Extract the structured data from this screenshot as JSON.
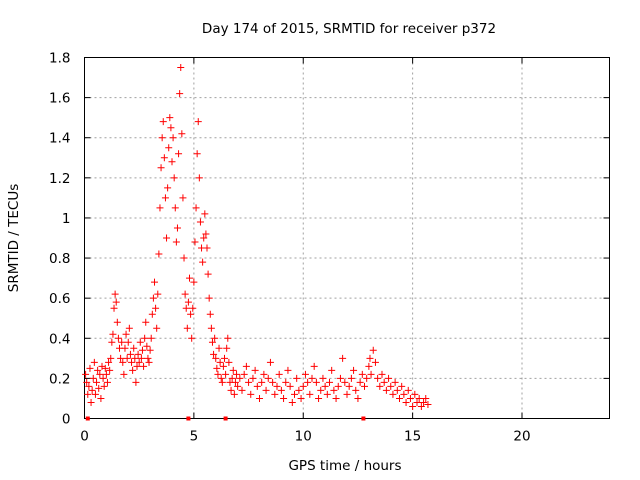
{
  "chart_data": {
    "type": "scatter",
    "title": "Day 174 of 2015, SRMTID for receiver p372",
    "xlabel": "GPS time / hours",
    "ylabel": "SRMTID / TECUs",
    "xlim": [
      0,
      24
    ],
    "ylim": [
      0,
      1.8
    ],
    "x_ticks": [
      0,
      5,
      10,
      15,
      20
    ],
    "x_tick_labels": [
      "0",
      "5",
      "10",
      "15",
      "20"
    ],
    "y_ticks": [
      0,
      0.2,
      0.4,
      0.6,
      0.8,
      1,
      1.2,
      1.4,
      1.6,
      1.8
    ],
    "y_tick_labels": [
      "0",
      "0.2",
      "0.4",
      "0.6",
      "0.8",
      "1",
      "1.2",
      "1.4",
      "1.6",
      "1.8"
    ],
    "grid": true,
    "marker": "plus",
    "marker_color": "#ff0000",
    "gap_markers_x": [
      0.15,
      4.75,
      6.45,
      12.75
    ],
    "series": [
      {
        "name": "SRMTID",
        "points": [
          [
            0.05,
            0.22
          ],
          [
            0.1,
            0.18
          ],
          [
            0.15,
            0.12
          ],
          [
            0.2,
            0.16
          ],
          [
            0.25,
            0.25
          ],
          [
            0.3,
            0.08
          ],
          [
            0.35,
            0.14
          ],
          [
            0.4,
            0.2
          ],
          [
            0.45,
            0.28
          ],
          [
            0.5,
            0.12
          ],
          [
            0.55,
            0.18
          ],
          [
            0.6,
            0.24
          ],
          [
            0.65,
            0.15
          ],
          [
            0.7,
            0.22
          ],
          [
            0.75,
            0.1
          ],
          [
            0.8,
            0.26
          ],
          [
            0.85,
            0.2
          ],
          [
            0.9,
            0.16
          ],
          [
            0.95,
            0.25
          ],
          [
            1.0,
            0.22
          ],
          [
            1.05,
            0.18
          ],
          [
            1.1,
            0.28
          ],
          [
            1.15,
            0.24
          ],
          [
            1.2,
            0.3
          ],
          [
            1.25,
            0.38
          ],
          [
            1.3,
            0.42
          ],
          [
            1.35,
            0.55
          ],
          [
            1.4,
            0.62
          ],
          [
            1.45,
            0.58
          ],
          [
            1.5,
            0.48
          ],
          [
            1.55,
            0.4
          ],
          [
            1.6,
            0.35
          ],
          [
            1.65,
            0.3
          ],
          [
            1.7,
            0.38
          ],
          [
            1.75,
            0.28
          ],
          [
            1.8,
            0.22
          ],
          [
            1.85,
            0.35
          ],
          [
            1.9,
            0.42
          ],
          [
            1.95,
            0.3
          ],
          [
            2.0,
            0.38
          ],
          [
            2.05,
            0.45
          ],
          [
            2.1,
            0.32
          ],
          [
            2.15,
            0.28
          ],
          [
            2.2,
            0.24
          ],
          [
            2.25,
            0.35
          ],
          [
            2.3,
            0.3
          ],
          [
            2.35,
            0.18
          ],
          [
            2.4,
            0.26
          ],
          [
            2.45,
            0.32
          ],
          [
            2.5,
            0.28
          ],
          [
            2.55,
            0.38
          ],
          [
            2.6,
            0.3
          ],
          [
            2.65,
            0.34
          ],
          [
            2.7,
            0.26
          ],
          [
            2.75,
            0.4
          ],
          [
            2.8,
            0.48
          ],
          [
            2.85,
            0.36
          ],
          [
            2.9,
            0.3
          ],
          [
            2.95,
            0.28
          ],
          [
            3.0,
            0.34
          ],
          [
            3.05,
            0.4
          ],
          [
            3.1,
            0.52
          ],
          [
            3.15,
            0.6
          ],
          [
            3.2,
            0.68
          ],
          [
            3.25,
            0.55
          ],
          [
            3.3,
            0.45
          ],
          [
            3.35,
            0.62
          ],
          [
            3.4,
            0.82
          ],
          [
            3.45,
            1.05
          ],
          [
            3.5,
            1.25
          ],
          [
            3.55,
            1.4
          ],
          [
            3.6,
            1.48
          ],
          [
            3.65,
            1.3
          ],
          [
            3.7,
            1.1
          ],
          [
            3.75,
            0.9
          ],
          [
            3.8,
            1.15
          ],
          [
            3.85,
            1.35
          ],
          [
            3.9,
            1.5
          ],
          [
            3.95,
            1.45
          ],
          [
            4.0,
            1.28
          ],
          [
            4.05,
            1.4
          ],
          [
            4.1,
            1.2
          ],
          [
            4.15,
            1.05
          ],
          [
            4.2,
            0.88
          ],
          [
            4.25,
            0.95
          ],
          [
            4.3,
            1.32
          ],
          [
            4.35,
            1.62
          ],
          [
            4.4,
            1.75
          ],
          [
            4.45,
            1.42
          ],
          [
            4.5,
            1.1
          ],
          [
            4.55,
            0.8
          ],
          [
            4.6,
            0.62
          ],
          [
            4.65,
            0.55
          ],
          [
            4.7,
            0.45
          ],
          [
            4.75,
            0.58
          ],
          [
            4.8,
            0.7
          ],
          [
            4.85,
            0.52
          ],
          [
            4.9,
            0.4
          ],
          [
            4.95,
            0.55
          ],
          [
            5.0,
            0.68
          ],
          [
            5.05,
            0.88
          ],
          [
            5.1,
            1.05
          ],
          [
            5.15,
            1.32
          ],
          [
            5.2,
            1.48
          ],
          [
            5.25,
            1.2
          ],
          [
            5.3,
            0.98
          ],
          [
            5.35,
            0.85
          ],
          [
            5.4,
            0.78
          ],
          [
            5.45,
            0.9
          ],
          [
            5.5,
            1.02
          ],
          [
            5.55,
            0.92
          ],
          [
            5.6,
            0.85
          ],
          [
            5.65,
            0.72
          ],
          [
            5.7,
            0.6
          ],
          [
            5.75,
            0.52
          ],
          [
            5.8,
            0.45
          ],
          [
            5.85,
            0.38
          ],
          [
            5.9,
            0.32
          ],
          [
            5.95,
            0.4
          ],
          [
            6.0,
            0.3
          ],
          [
            6.05,
            0.25
          ],
          [
            6.1,
            0.22
          ],
          [
            6.15,
            0.35
          ],
          [
            6.2,
            0.28
          ],
          [
            6.25,
            0.2
          ],
          [
            6.3,
            0.18
          ],
          [
            6.35,
            0.26
          ],
          [
            6.4,
            0.3
          ],
          [
            6.45,
            0.22
          ],
          [
            6.5,
            0.35
          ],
          [
            6.55,
            0.4
          ],
          [
            6.6,
            0.28
          ],
          [
            6.65,
            0.18
          ],
          [
            6.7,
            0.14
          ],
          [
            6.75,
            0.2
          ],
          [
            6.8,
            0.24
          ],
          [
            6.85,
            0.12
          ],
          [
            6.9,
            0.18
          ],
          [
            6.95,
            0.22
          ],
          [
            7.0,
            0.16
          ],
          [
            7.1,
            0.2
          ],
          [
            7.2,
            0.14
          ],
          [
            7.3,
            0.22
          ],
          [
            7.4,
            0.26
          ],
          [
            7.5,
            0.18
          ],
          [
            7.6,
            0.12
          ],
          [
            7.7,
            0.2
          ],
          [
            7.8,
            0.24
          ],
          [
            7.9,
            0.16
          ],
          [
            8.0,
            0.1
          ],
          [
            8.1,
            0.18
          ],
          [
            8.2,
            0.22
          ],
          [
            8.3,
            0.14
          ],
          [
            8.4,
            0.2
          ],
          [
            8.5,
            0.28
          ],
          [
            8.6,
            0.18
          ],
          [
            8.7,
            0.12
          ],
          [
            8.8,
            0.16
          ],
          [
            8.9,
            0.22
          ],
          [
            9.0,
            0.14
          ],
          [
            9.1,
            0.1
          ],
          [
            9.2,
            0.18
          ],
          [
            9.3,
            0.24
          ],
          [
            9.4,
            0.16
          ],
          [
            9.5,
            0.08
          ],
          [
            9.6,
            0.12
          ],
          [
            9.7,
            0.2
          ],
          [
            9.8,
            0.14
          ],
          [
            9.9,
            0.1
          ],
          [
            10.0,
            0.16
          ],
          [
            10.1,
            0.22
          ],
          [
            10.2,
            0.18
          ],
          [
            10.3,
            0.12
          ],
          [
            10.4,
            0.2
          ],
          [
            10.5,
            0.26
          ],
          [
            10.6,
            0.18
          ],
          [
            10.7,
            0.1
          ],
          [
            10.8,
            0.14
          ],
          [
            10.9,
            0.2
          ],
          [
            11.0,
            0.16
          ],
          [
            11.1,
            0.12
          ],
          [
            11.2,
            0.18
          ],
          [
            11.3,
            0.24
          ],
          [
            11.4,
            0.14
          ],
          [
            11.5,
            0.1
          ],
          [
            11.6,
            0.16
          ],
          [
            11.7,
            0.2
          ],
          [
            11.8,
            0.3
          ],
          [
            11.9,
            0.18
          ],
          [
            12.0,
            0.12
          ],
          [
            12.1,
            0.16
          ],
          [
            12.2,
            0.2
          ],
          [
            12.3,
            0.24
          ],
          [
            12.4,
            0.14
          ],
          [
            12.5,
            0.1
          ],
          [
            12.6,
            0.18
          ],
          [
            12.7,
            0.22
          ],
          [
            12.8,
            0.16
          ],
          [
            12.9,
            0.2
          ],
          [
            13.0,
            0.26
          ],
          [
            13.05,
            0.3
          ],
          [
            13.1,
            0.22
          ],
          [
            13.2,
            0.34
          ],
          [
            13.3,
            0.28
          ],
          [
            13.4,
            0.2
          ],
          [
            13.5,
            0.16
          ],
          [
            13.6,
            0.22
          ],
          [
            13.7,
            0.18
          ],
          [
            13.8,
            0.14
          ],
          [
            13.9,
            0.2
          ],
          [
            14.0,
            0.16
          ],
          [
            14.1,
            0.12
          ],
          [
            14.2,
            0.18
          ],
          [
            14.3,
            0.14
          ],
          [
            14.4,
            0.1
          ],
          [
            14.5,
            0.16
          ],
          [
            14.6,
            0.12
          ],
          [
            14.7,
            0.08
          ],
          [
            14.8,
            0.14
          ],
          [
            14.9,
            0.1
          ],
          [
            15.0,
            0.06
          ],
          [
            15.1,
            0.12
          ],
          [
            15.2,
            0.08
          ],
          [
            15.3,
            0.1
          ],
          [
            15.4,
            0.06
          ],
          [
            15.5,
            0.08
          ],
          [
            15.6,
            0.1
          ],
          [
            15.7,
            0.07
          ]
        ]
      }
    ]
  }
}
